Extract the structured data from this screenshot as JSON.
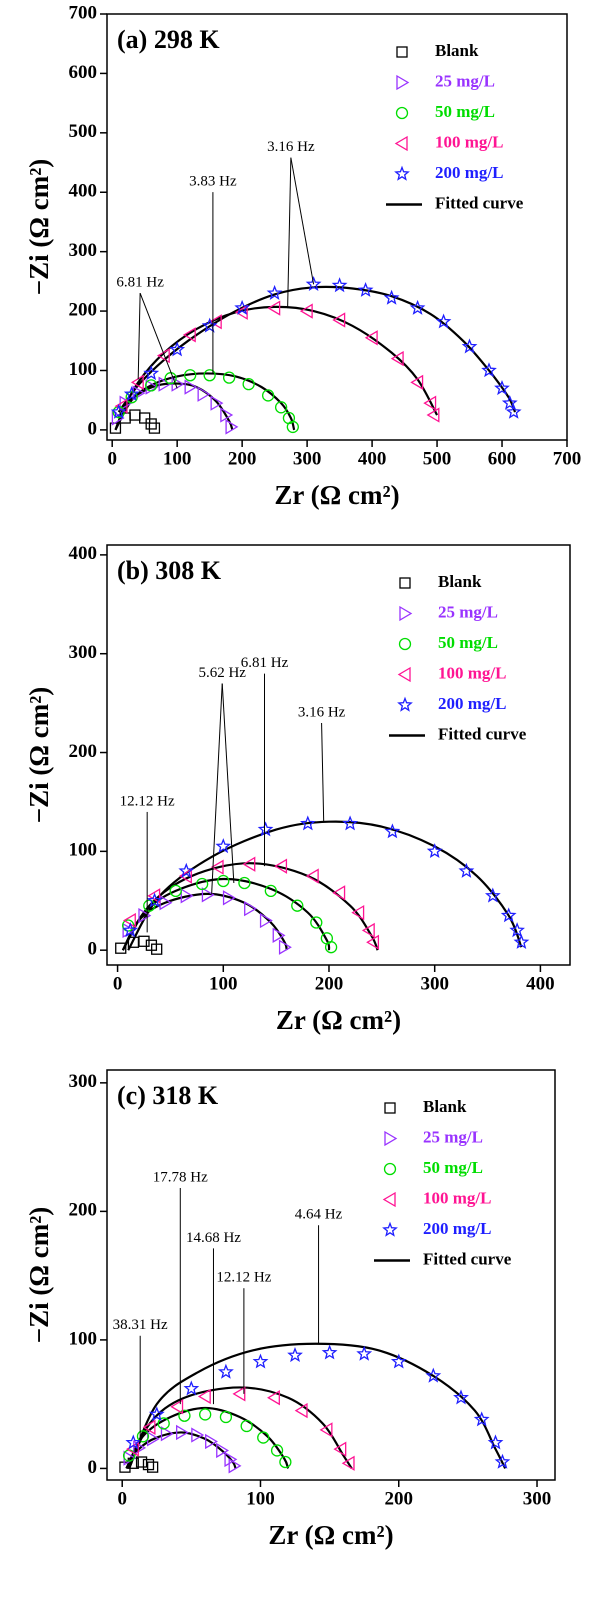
{
  "chart_data": [
    {
      "type": "scatter",
      "title": "(a) 298 K",
      "xlabel": "Zr (Ω cm²)",
      "ylabel": "−Zi (Ω cm²)",
      "xlim": [
        -8,
        700
      ],
      "ylim": [
        -17,
        700
      ],
      "xticks": [
        0,
        100,
        200,
        300,
        400,
        500,
        600,
        700
      ],
      "yticks": [
        0,
        100,
        200,
        300,
        400,
        500,
        600,
        700
      ],
      "legend": "upper right",
      "fit_name": "Fitted curve",
      "fit_color": "#000000",
      "series": [
        {
          "name": "Blank",
          "color": "#000000",
          "marker": "square",
          "x": [
            5,
            20,
            35,
            50,
            60,
            65
          ],
          "values": [
            3,
            20,
            25,
            20,
            10,
            3
          ]
        },
        {
          "name": "25 mg/L",
          "color": "#9933ff",
          "marker": "triangle-right",
          "x": [
            8,
            20,
            40,
            60,
            80,
            100,
            120,
            140,
            160,
            175,
            183
          ],
          "values": [
            20,
            45,
            62,
            72,
            77,
            77,
            72,
            60,
            45,
            25,
            5
          ],
          "fit_x": [
            5,
            20,
            40,
            70,
            100,
            130,
            160,
            180,
            185
          ],
          "fit_values": [
            0,
            40,
            60,
            75,
            78,
            72,
            48,
            15,
            0
          ]
        },
        {
          "name": "50 mg/L",
          "color": "#00dd00",
          "marker": "circle",
          "x": [
            10,
            30,
            60,
            90,
            120,
            150,
            180,
            210,
            240,
            260,
            272,
            278
          ],
          "values": [
            30,
            55,
            75,
            87,
            92,
            92,
            88,
            77,
            58,
            38,
            20,
            5
          ],
          "fit_x": [
            5,
            30,
            60,
            100,
            145,
            190,
            230,
            260,
            275,
            280
          ],
          "fit_values": [
            0,
            50,
            75,
            90,
            95,
            90,
            72,
            45,
            20,
            0
          ]
        },
        {
          "name": "100 mg/L",
          "color": "#ff1493",
          "marker": "triangle-left",
          "x": [
            15,
            40,
            80,
            120,
            160,
            200,
            250,
            300,
            350,
            400,
            440,
            470,
            490,
            495
          ],
          "values": [
            40,
            80,
            125,
            160,
            182,
            198,
            205,
            200,
            185,
            155,
            120,
            80,
            45,
            25
          ],
          "fit_x": [
            10,
            40,
            80,
            130,
            190,
            250,
            310,
            370,
            430,
            470,
            500
          ],
          "fit_values": [
            20,
            80,
            130,
            170,
            198,
            207,
            200,
            175,
            130,
            85,
            25
          ]
        },
        {
          "name": "200 mg/L",
          "color": "#1f1fff",
          "marker": "star",
          "x": [
            10,
            30,
            60,
            100,
            150,
            200,
            250,
            310,
            350,
            390,
            430,
            470,
            510,
            550,
            580,
            600,
            612,
            618
          ],
          "values": [
            30,
            60,
            95,
            135,
            175,
            205,
            230,
            245,
            243,
            235,
            222,
            205,
            182,
            140,
            100,
            70,
            45,
            30
          ],
          "fit_x": [
            10,
            40,
            80,
            130,
            190,
            250,
            310,
            370,
            430,
            490,
            540,
            580,
            610,
            620
          ],
          "fit_values": [
            30,
            75,
            118,
            160,
            200,
            228,
            240,
            238,
            225,
            195,
            150,
            100,
            55,
            30
          ]
        }
      ],
      "annotations": [
        {
          "text": "6.81 Hz",
          "x": [
            40,
            100
          ],
          "y": [
            85,
            70
          ]
        },
        {
          "text": "3.83 Hz",
          "x": [
            155
          ],
          "y": [
            95
          ]
        },
        {
          "text": "3.16 Hz",
          "x": [
            270,
            310
          ],
          "y": [
            205,
            245
          ]
        }
      ]
    },
    {
      "type": "scatter",
      "title": "(b) 308 K",
      "xlabel": "Zr (Ω cm²)",
      "ylabel": "−Zi (Ω cm²)",
      "xlim": [
        -10,
        428
      ],
      "ylim": [
        -15,
        410
      ],
      "xticks": [
        0,
        100,
        200,
        300,
        400
      ],
      "yticks": [
        0,
        100,
        200,
        300,
        400
      ],
      "legend": "upper right",
      "fit_name": "Fitted curve",
      "fit_color": "#000000",
      "series": [
        {
          "name": "Blank",
          "color": "#000000",
          "marker": "square",
          "x": [
            3,
            15,
            25,
            32,
            37
          ],
          "values": [
            2,
            8,
            9,
            5,
            1
          ]
        },
        {
          "name": "25 mg/L",
          "color": "#9933ff",
          "marker": "triangle-right",
          "x": [
            10,
            25,
            45,
            65,
            85,
            105,
            125,
            140,
            152,
            158
          ],
          "values": [
            20,
            35,
            48,
            55,
            56,
            53,
            42,
            30,
            15,
            3
          ],
          "fit_x": [
            5,
            20,
            45,
            85,
            120,
            145,
            158,
            160
          ],
          "fit_values": [
            0,
            30,
            48,
            57,
            48,
            28,
            8,
            0
          ]
        },
        {
          "name": "50 mg/L",
          "color": "#00dd00",
          "marker": "circle",
          "x": [
            10,
            30,
            55,
            80,
            100,
            120,
            145,
            170,
            188,
            198,
            202
          ],
          "values": [
            25,
            45,
            60,
            67,
            70,
            68,
            60,
            45,
            28,
            12,
            3
          ],
          "fit_x": [
            5,
            25,
            55,
            100,
            145,
            180,
            198,
            200
          ],
          "fit_values": [
            0,
            38,
            60,
            72,
            62,
            38,
            10,
            0
          ]
        },
        {
          "name": "100 mg/L",
          "color": "#ff1493",
          "marker": "triangle-left",
          "x": [
            12,
            35,
            65,
            95,
            125,
            155,
            185,
            210,
            228,
            238,
            242
          ],
          "values": [
            30,
            55,
            75,
            84,
            87,
            85,
            75,
            58,
            38,
            20,
            8
          ],
          "fit_x": [
            5,
            30,
            70,
            125,
            180,
            220,
            240,
            246
          ],
          "fit_values": [
            0,
            45,
            75,
            88,
            75,
            45,
            15,
            0
          ]
        },
        {
          "name": "200 mg/L",
          "color": "#1f1fff",
          "marker": "star",
          "x": [
            12,
            35,
            65,
            100,
            140,
            180,
            220,
            260,
            300,
            330,
            355,
            370,
            378,
            382
          ],
          "values": [
            20,
            50,
            80,
            105,
            122,
            128,
            128,
            120,
            100,
            80,
            55,
            35,
            20,
            8
          ],
          "fit_x": [
            10,
            40,
            90,
            150,
            200,
            250,
            300,
            340,
            370,
            382
          ],
          "fit_values": [
            0,
            55,
            95,
            122,
            130,
            125,
            105,
            75,
            35,
            3
          ]
        }
      ],
      "annotations": [
        {
          "text": "12.12 Hz",
          "x": [
            28
          ],
          "y": [
            18
          ]
        },
        {
          "text": "5.62 Hz",
          "x": [
            89,
            110
          ],
          "y": [
            57,
            68
          ]
        },
        {
          "text": "6.81 Hz",
          "x": [
            139
          ],
          "y": [
            85
          ]
        },
        {
          "text": "3.16 Hz",
          "x": [
            195
          ],
          "y": [
            130
          ]
        }
      ]
    },
    {
      "type": "scatter",
      "title": "(c) 318 K",
      "xlabel": "Zr (Ω cm²)",
      "ylabel": "−Zi (Ω cm²)",
      "xlim": [
        -11,
        313
      ],
      "ylim": [
        -9,
        310
      ],
      "xticks": [
        0,
        100,
        200,
        300
      ],
      "yticks": [
        0,
        100,
        200,
        300
      ],
      "legend": "upper right",
      "fit_name": "Fitted curve",
      "fit_color": "#000000",
      "series": [
        {
          "name": "Blank",
          "color": "#000000",
          "marker": "square",
          "x": [
            2,
            8,
            14,
            19,
            22
          ],
          "values": [
            1,
            4,
            5,
            3,
            1
          ]
        },
        {
          "name": "25 mg/L",
          "color": "#9933ff",
          "marker": "triangle-right",
          "x": [
            5,
            12,
            22,
            32,
            43,
            54,
            64,
            72,
            78,
            81
          ],
          "values": [
            8,
            16,
            23,
            27,
            28,
            26,
            21,
            14,
            7,
            2
          ],
          "fit_x": [
            3,
            12,
            25,
            43,
            60,
            72,
            80,
            82
          ],
          "fit_values": [
            0,
            15,
            24,
            28,
            23,
            14,
            5,
            0
          ]
        },
        {
          "name": "50 mg/L",
          "color": "#00dd00",
          "marker": "circle",
          "x": [
            5,
            15,
            30,
            45,
            60,
            75,
            90,
            102,
            112,
            118
          ],
          "values": [
            10,
            25,
            35,
            41,
            42,
            40,
            33,
            24,
            14,
            5
          ],
          "fit_x": [
            3,
            15,
            35,
            60,
            85,
            105,
            117,
            120
          ],
          "fit_values": [
            0,
            25,
            40,
            47,
            40,
            25,
            8,
            0
          ]
        },
        {
          "name": "100 mg/L",
          "color": "#ff1493",
          "marker": "triangle-left",
          "x": [
            8,
            20,
            40,
            60,
            85,
            110,
            130,
            148,
            158,
            164
          ],
          "values": [
            15,
            32,
            48,
            56,
            58,
            55,
            45,
            30,
            15,
            4
          ],
          "fit_x": [
            5,
            20,
            45,
            85,
            120,
            145,
            160,
            166
          ],
          "fit_values": [
            0,
            35,
            55,
            63,
            55,
            35,
            10,
            0
          ]
        },
        {
          "name": "200 mg/L",
          "color": "#1f1fff",
          "marker": "star",
          "x": [
            8,
            25,
            50,
            75,
            100,
            125,
            150,
            175,
            200,
            225,
            245,
            260,
            270,
            275
          ],
          "values": [
            20,
            42,
            62,
            75,
            83,
            88,
            90,
            89,
            83,
            72,
            55,
            38,
            20,
            5
          ],
          "fit_x": [
            5,
            25,
            55,
            95,
            140,
            185,
            225,
            255,
            270,
            277
          ],
          "fit_values": [
            0,
            50,
            75,
            92,
            97,
            92,
            72,
            45,
            15,
            0
          ]
        }
      ],
      "annotations": [
        {
          "text": "38.31 Hz",
          "x": [
            13
          ],
          "y": [
            20
          ]
        },
        {
          "text": "17.78 Hz",
          "x": [
            42
          ],
          "y": [
            50
          ]
        },
        {
          "text": "14.68 Hz",
          "x": [
            66
          ],
          "y": [
            50
          ]
        },
        {
          "text": "12.12 Hz",
          "x": [
            88
          ],
          "y": [
            58
          ]
        },
        {
          "text": "4.64 Hz",
          "x": [
            142
          ],
          "y": [
            97
          ]
        }
      ]
    }
  ]
}
